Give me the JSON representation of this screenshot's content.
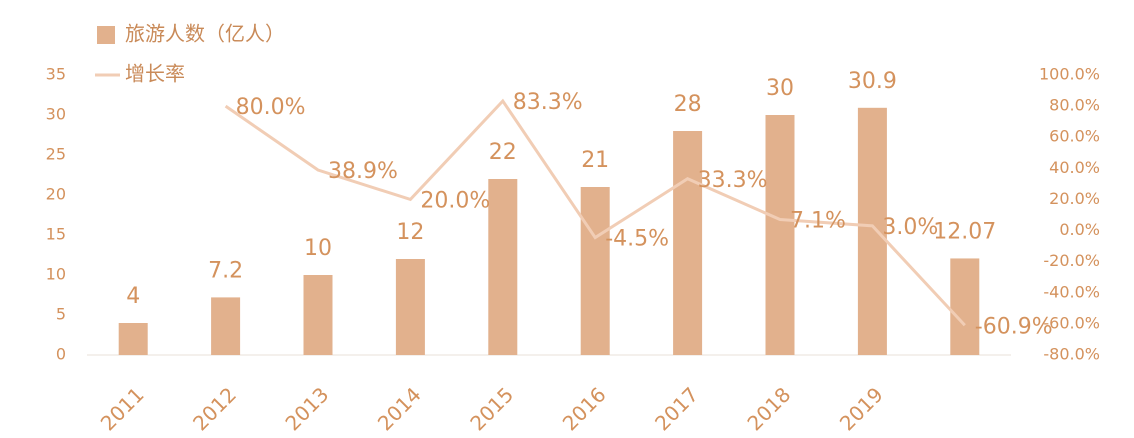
{
  "chart_data": {
    "type": "bar_line",
    "categories": [
      "2011",
      "2012",
      "2013",
      "2014",
      "2015",
      "2016",
      "2017",
      "2018",
      "2019",
      null
    ],
    "series": [
      {
        "name": "旅游人数（亿人）",
        "type": "bar",
        "color": "#e2b18d",
        "values": [
          4,
          7.2,
          10,
          12,
          22,
          21,
          28,
          30,
          30.9,
          12.07
        ]
      },
      {
        "name": "增长率",
        "type": "line",
        "axis": "y2",
        "color": "#f1cdb5",
        "values": [
          null,
          80.0,
          38.9,
          20.0,
          83.3,
          -4.5,
          33.3,
          7.1,
          3.0,
          -60.9
        ],
        "value_labels": [
          null,
          "80.0%",
          "38.9%",
          "20.0%",
          "83.3%",
          "-4.5%",
          "33.3%",
          "7.1%",
          "3.0%",
          "-60.9%"
        ]
      }
    ],
    "ylim": [
      0,
      35
    ],
    "yticks": [
      0,
      5,
      10,
      15,
      20,
      25,
      30,
      35
    ],
    "y2lim": [
      -80,
      100
    ],
    "y2ticks": [
      {
        "value": -80,
        "label": "-80.0%"
      },
      {
        "value": -60,
        "label": "-60.0%"
      },
      {
        "value": -40,
        "label": "-40.0%"
      },
      {
        "value": -20,
        "label": "-20.0%"
      },
      {
        "value": 0,
        "label": "0.0%"
      },
      {
        "value": 20,
        "label": "20.0%"
      },
      {
        "value": 40,
        "label": "40.0%"
      },
      {
        "value": 60,
        "label": "60.0%"
      },
      {
        "value": 80,
        "label": "80.0%"
      },
      {
        "value": 100,
        "label": "100.0%"
      }
    ],
    "grid": false
  }
}
